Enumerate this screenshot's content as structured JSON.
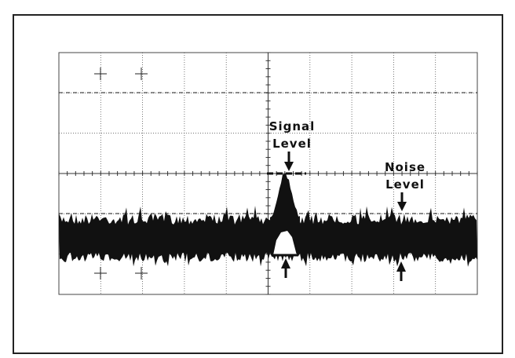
{
  "signal_label": [
    "Signal",
    "Level"
  ],
  "noise_label": [
    "Noise",
    "Level"
  ]
}
